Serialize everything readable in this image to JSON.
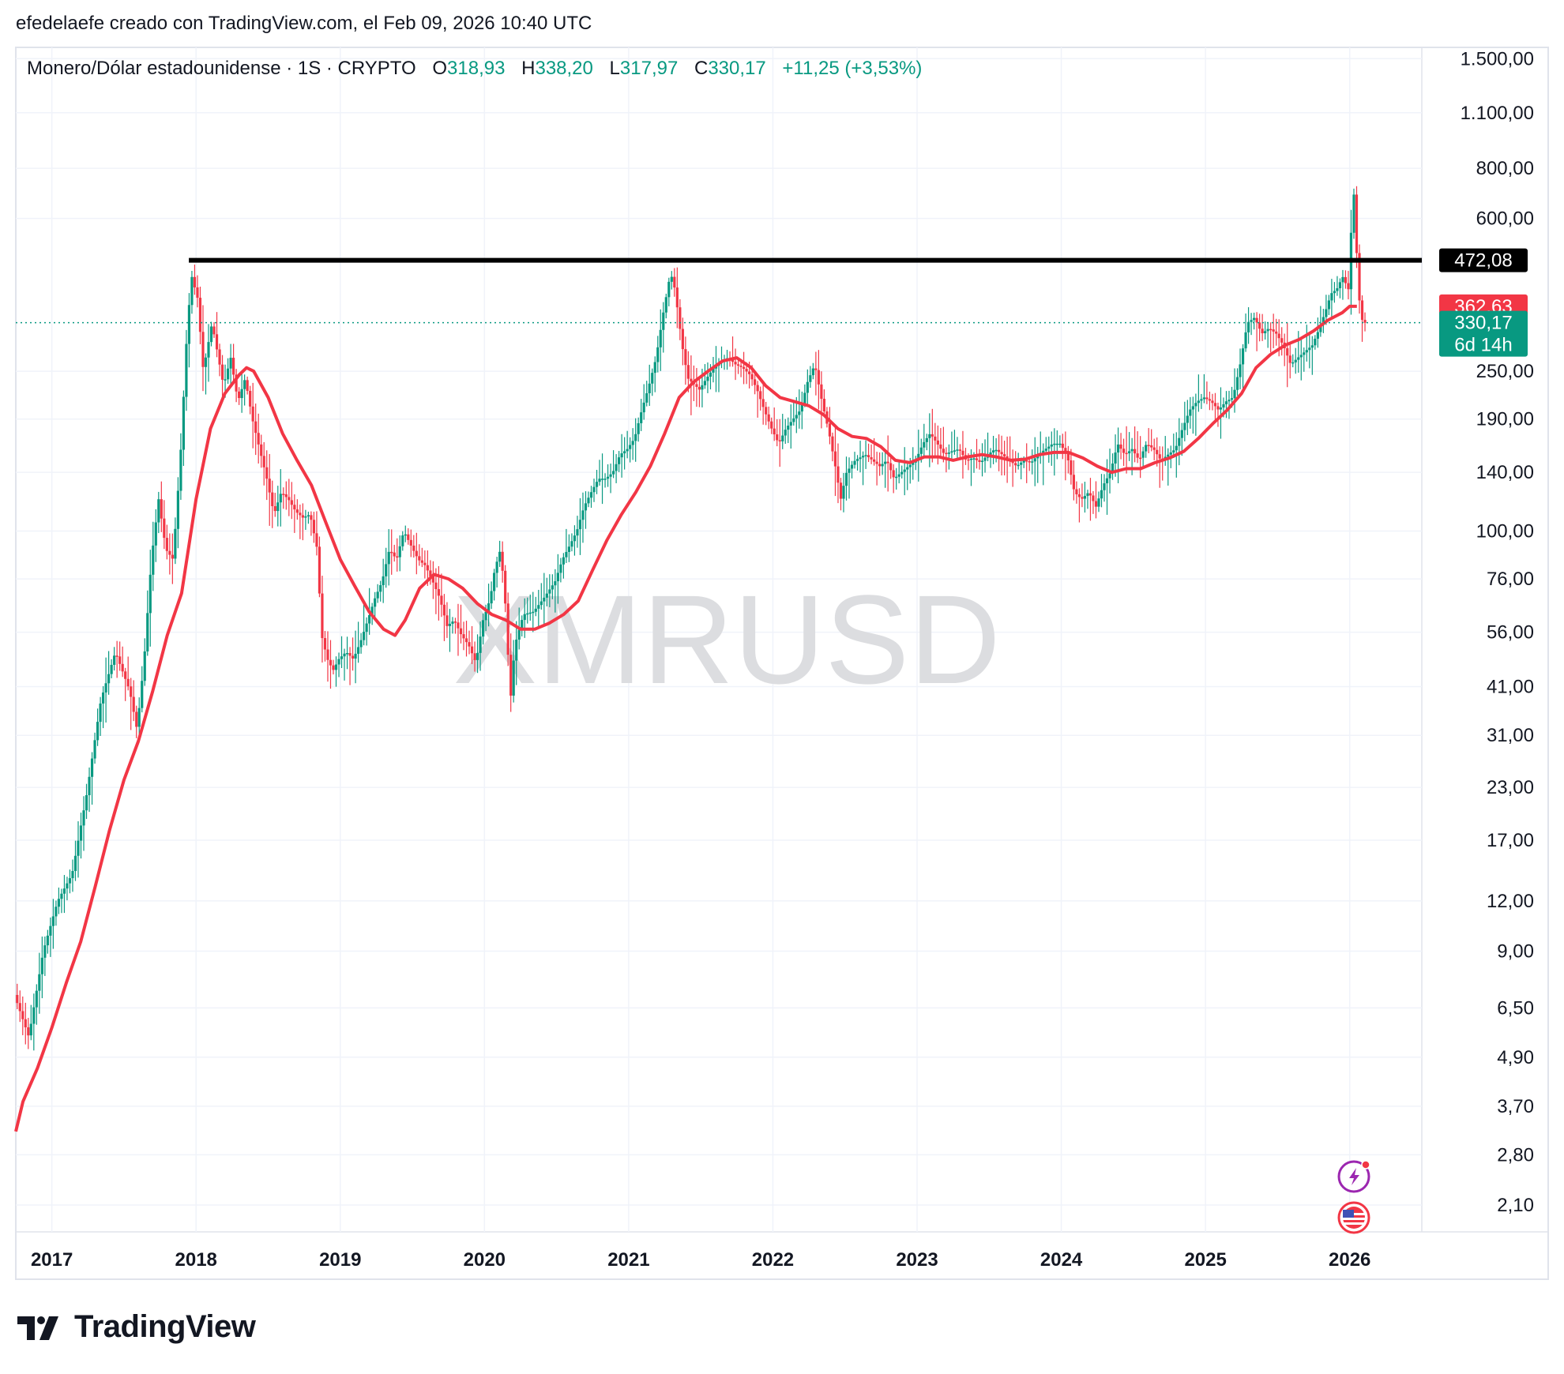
{
  "header": {
    "credit": "efedelaefe creado con TradingView.com, el Feb 09, 2026 10:40 UTC"
  },
  "legend": {
    "symbol_text": "Monero/Dólar estadounidense · 1S · CRYPTO",
    "o_label": "O",
    "o_value": "318,93",
    "h_label": "H",
    "h_value": "338,20",
    "l_label": "L",
    "l_value": "317,97",
    "c_label": "C",
    "c_value": "330,17",
    "change": "+11,25 (+3,53%)"
  },
  "watermark": "XMRUSD",
  "footer": {
    "brand": "TradingView"
  },
  "icons": [
    "lightning-icon",
    "us-flag-icon",
    "tradingview-logo-icon"
  ],
  "colors": {
    "up": "#089981",
    "down": "#f23645",
    "ma_line": "#f23645",
    "resistance_line": "#000000",
    "grid": "#f0f3fa",
    "text": "#131722",
    "watermark": "#dcdde0",
    "icon_purple": "#9c27b0"
  },
  "chart_data": {
    "type": "candlestick",
    "title": "Monero/Dólar estadounidense · 1S · CRYPTO",
    "scale": "log",
    "grid": true,
    "y_axis_position": "right",
    "x_tick_labels": [
      "2017",
      "2018",
      "2019",
      "2020",
      "2021",
      "2022",
      "2023",
      "2024",
      "2025",
      "2026"
    ],
    "y_tick_labels": [
      "1.500,00",
      "1.100,00",
      "800,00",
      "600,00",
      "250,00",
      "190,00",
      "140,00",
      "100,00",
      "76,00",
      "56,00",
      "41,00",
      "31,00",
      "23,00",
      "17,00",
      "12,00",
      "9,00",
      "6,50",
      "4,90",
      "3,70",
      "2,80",
      "2,10"
    ],
    "y_tick_values": [
      1500,
      1100,
      800,
      600,
      250,
      190,
      140,
      100,
      76,
      56,
      41,
      31,
      23,
      17,
      12,
      9,
      6.5,
      4.9,
      3.7,
      2.8,
      2.1
    ],
    "ylim": [
      1.8,
      1600
    ],
    "xlim": [
      2016.75,
      2026.5
    ],
    "last_bar": {
      "open": 318.93,
      "high": 338.2,
      "low": 317.97,
      "close": 330.17
    },
    "horizontal_line": {
      "value": 472.08,
      "label": "472,08",
      "x_start": 2017.95
    },
    "price_labels": [
      {
        "label": "472,08",
        "value": 472.08,
        "color": "#000000"
      },
      {
        "label": "362,63",
        "value": 362.63,
        "color": "#f23645"
      },
      {
        "label": "330,17",
        "sublabel": "6d 14h",
        "value": 330.17,
        "color": "#089981"
      }
    ],
    "current_price_line": 330.17,
    "series": [
      {
        "type": "price",
        "points": [
          [
            2016.75,
            7
          ],
          [
            2016.85,
            5.5
          ],
          [
            2016.95,
            9
          ],
          [
            2017.05,
            12
          ],
          [
            2017.15,
            14
          ],
          [
            2017.25,
            22
          ],
          [
            2017.35,
            38
          ],
          [
            2017.45,
            50
          ],
          [
            2017.55,
            40
          ],
          [
            2017.6,
            32
          ],
          [
            2017.65,
            48
          ],
          [
            2017.7,
            85
          ],
          [
            2017.75,
            120
          ],
          [
            2017.8,
            90
          ],
          [
            2017.85,
            85
          ],
          [
            2017.9,
            150
          ],
          [
            2017.95,
            330
          ],
          [
            2017.98,
            430
          ],
          [
            2018.02,
            380
          ],
          [
            2018.06,
            250
          ],
          [
            2018.12,
            330
          ],
          [
            2018.2,
            230
          ],
          [
            2018.25,
            270
          ],
          [
            2018.3,
            210
          ],
          [
            2018.35,
            240
          ],
          [
            2018.4,
            190
          ],
          [
            2018.45,
            160
          ],
          [
            2018.5,
            135
          ],
          [
            2018.55,
            110
          ],
          [
            2018.6,
            125
          ],
          [
            2018.65,
            120
          ],
          [
            2018.7,
            112
          ],
          [
            2018.75,
            108
          ],
          [
            2018.8,
            110
          ],
          [
            2018.85,
            90
          ],
          [
            2018.88,
            55
          ],
          [
            2018.92,
            48
          ],
          [
            2018.96,
            45
          ],
          [
            2019.0,
            48
          ],
          [
            2019.05,
            50
          ],
          [
            2019.1,
            48
          ],
          [
            2019.15,
            53
          ],
          [
            2019.2,
            60
          ],
          [
            2019.25,
            68
          ],
          [
            2019.3,
            75
          ],
          [
            2019.35,
            90
          ],
          [
            2019.4,
            85
          ],
          [
            2019.45,
            100
          ],
          [
            2019.5,
            92
          ],
          [
            2019.55,
            85
          ],
          [
            2019.6,
            82
          ],
          [
            2019.65,
            75
          ],
          [
            2019.7,
            68
          ],
          [
            2019.75,
            58
          ],
          [
            2019.8,
            60
          ],
          [
            2019.85,
            55
          ],
          [
            2019.9,
            52
          ],
          [
            2019.95,
            47
          ],
          [
            2020.0,
            60
          ],
          [
            2020.05,
            68
          ],
          [
            2020.08,
            80
          ],
          [
            2020.12,
            90
          ],
          [
            2020.15,
            70
          ],
          [
            2020.19,
            38
          ],
          [
            2020.22,
            52
          ],
          [
            2020.28,
            62
          ],
          [
            2020.35,
            63
          ],
          [
            2020.42,
            68
          ],
          [
            2020.5,
            75
          ],
          [
            2020.55,
            85
          ],
          [
            2020.6,
            92
          ],
          [
            2020.65,
            100
          ],
          [
            2020.7,
            115
          ],
          [
            2020.75,
            125
          ],
          [
            2020.8,
            135
          ],
          [
            2020.85,
            135
          ],
          [
            2020.9,
            140
          ],
          [
            2020.95,
            155
          ],
          [
            2021.0,
            160
          ],
          [
            2021.05,
            170
          ],
          [
            2021.1,
            200
          ],
          [
            2021.15,
            230
          ],
          [
            2021.2,
            270
          ],
          [
            2021.25,
            350
          ],
          [
            2021.3,
            440
          ],
          [
            2021.33,
            400
          ],
          [
            2021.38,
            290
          ],
          [
            2021.42,
            240
          ],
          [
            2021.5,
            225
          ],
          [
            2021.55,
            240
          ],
          [
            2021.6,
            255
          ],
          [
            2021.65,
            265
          ],
          [
            2021.7,
            270
          ],
          [
            2021.75,
            260
          ],
          [
            2021.8,
            255
          ],
          [
            2021.85,
            245
          ],
          [
            2021.9,
            225
          ],
          [
            2021.95,
            200
          ],
          [
            2022.0,
            180
          ],
          [
            2022.05,
            165
          ],
          [
            2022.1,
            180
          ],
          [
            2022.15,
            190
          ],
          [
            2022.2,
            200
          ],
          [
            2022.25,
            235
          ],
          [
            2022.3,
            260
          ],
          [
            2022.35,
            210
          ],
          [
            2022.4,
            175
          ],
          [
            2022.45,
            140
          ],
          [
            2022.48,
            120
          ],
          [
            2022.52,
            140
          ],
          [
            2022.58,
            150
          ],
          [
            2022.65,
            155
          ],
          [
            2022.7,
            150
          ],
          [
            2022.75,
            145
          ],
          [
            2022.8,
            150
          ],
          [
            2022.85,
            135
          ],
          [
            2022.9,
            140
          ],
          [
            2022.95,
            145
          ],
          [
            2023.0,
            150
          ],
          [
            2023.05,
            165
          ],
          [
            2023.1,
            175
          ],
          [
            2023.15,
            165
          ],
          [
            2023.2,
            155
          ],
          [
            2023.25,
            158
          ],
          [
            2023.3,
            160
          ],
          [
            2023.35,
            150
          ],
          [
            2023.4,
            152
          ],
          [
            2023.45,
            148
          ],
          [
            2023.5,
            155
          ],
          [
            2023.55,
            160
          ],
          [
            2023.6,
            155
          ],
          [
            2023.65,
            150
          ],
          [
            2023.7,
            145
          ],
          [
            2023.75,
            150
          ],
          [
            2023.8,
            148
          ],
          [
            2023.85,
            155
          ],
          [
            2023.9,
            160
          ],
          [
            2023.95,
            165
          ],
          [
            2024.0,
            165
          ],
          [
            2024.05,
            155
          ],
          [
            2024.1,
            125
          ],
          [
            2024.15,
            120
          ],
          [
            2024.2,
            125
          ],
          [
            2024.25,
            115
          ],
          [
            2024.3,
            130
          ],
          [
            2024.35,
            140
          ],
          [
            2024.4,
            165
          ],
          [
            2024.45,
            155
          ],
          [
            2024.5,
            160
          ],
          [
            2024.55,
            150
          ],
          [
            2024.6,
            165
          ],
          [
            2024.65,
            160
          ],
          [
            2024.7,
            150
          ],
          [
            2024.75,
            155
          ],
          [
            2024.8,
            160
          ],
          [
            2024.85,
            180
          ],
          [
            2024.9,
            200
          ],
          [
            2024.95,
            210
          ],
          [
            2025.0,
            215
          ],
          [
            2025.05,
            210
          ],
          [
            2025.1,
            200
          ],
          [
            2025.15,
            210
          ],
          [
            2025.2,
            215
          ],
          [
            2025.25,
            260
          ],
          [
            2025.3,
            330
          ],
          [
            2025.35,
            340
          ],
          [
            2025.4,
            310
          ],
          [
            2025.45,
            320
          ],
          [
            2025.5,
            310
          ],
          [
            2025.55,
            290
          ],
          [
            2025.6,
            260
          ],
          [
            2025.65,
            270
          ],
          [
            2025.7,
            280
          ],
          [
            2025.75,
            290
          ],
          [
            2025.8,
            320
          ],
          [
            2025.85,
            360
          ],
          [
            2025.88,
            390
          ],
          [
            2025.92,
            400
          ],
          [
            2025.96,
            430
          ],
          [
            2026.0,
            400
          ],
          [
            2026.02,
            560
          ],
          [
            2026.04,
            700
          ],
          [
            2026.06,
            470
          ],
          [
            2026.08,
            360
          ],
          [
            2026.1,
            330
          ]
        ]
      },
      {
        "type": "moving_average",
        "color": "#f23645",
        "points": [
          [
            2016.75,
            3.2
          ],
          [
            2016.8,
            3.8
          ],
          [
            2016.9,
            4.6
          ],
          [
            2017.0,
            5.8
          ],
          [
            2017.1,
            7.5
          ],
          [
            2017.2,
            9.5
          ],
          [
            2017.3,
            13
          ],
          [
            2017.4,
            18
          ],
          [
            2017.5,
            24
          ],
          [
            2017.6,
            30
          ],
          [
            2017.7,
            40
          ],
          [
            2017.8,
            55
          ],
          [
            2017.9,
            70
          ],
          [
            2018.0,
            120
          ],
          [
            2018.1,
            180
          ],
          [
            2018.2,
            220
          ],
          [
            2018.3,
            245
          ],
          [
            2018.35,
            255
          ],
          [
            2018.4,
            250
          ],
          [
            2018.5,
            215
          ],
          [
            2018.6,
            175
          ],
          [
            2018.7,
            150
          ],
          [
            2018.8,
            130
          ],
          [
            2018.9,
            105
          ],
          [
            2019.0,
            85
          ],
          [
            2019.1,
            73
          ],
          [
            2019.2,
            63
          ],
          [
            2019.3,
            57
          ],
          [
            2019.38,
            55
          ],
          [
            2019.45,
            60
          ],
          [
            2019.55,
            72
          ],
          [
            2019.65,
            78
          ],
          [
            2019.75,
            76
          ],
          [
            2019.85,
            72
          ],
          [
            2019.95,
            66
          ],
          [
            2020.05,
            62
          ],
          [
            2020.15,
            60
          ],
          [
            2020.25,
            57
          ],
          [
            2020.35,
            57
          ],
          [
            2020.45,
            59
          ],
          [
            2020.55,
            62
          ],
          [
            2020.65,
            67
          ],
          [
            2020.75,
            80
          ],
          [
            2020.85,
            95
          ],
          [
            2020.95,
            110
          ],
          [
            2021.05,
            125
          ],
          [
            2021.15,
            145
          ],
          [
            2021.25,
            175
          ],
          [
            2021.35,
            215
          ],
          [
            2021.45,
            235
          ],
          [
            2021.55,
            250
          ],
          [
            2021.65,
            265
          ],
          [
            2021.75,
            270
          ],
          [
            2021.85,
            255
          ],
          [
            2021.95,
            230
          ],
          [
            2022.05,
            215
          ],
          [
            2022.15,
            210
          ],
          [
            2022.25,
            205
          ],
          [
            2022.35,
            195
          ],
          [
            2022.45,
            180
          ],
          [
            2022.55,
            172
          ],
          [
            2022.65,
            170
          ],
          [
            2022.75,
            162
          ],
          [
            2022.85,
            150
          ],
          [
            2022.95,
            148
          ],
          [
            2023.05,
            153
          ],
          [
            2023.15,
            153
          ],
          [
            2023.25,
            150
          ],
          [
            2023.35,
            153
          ],
          [
            2023.45,
            155
          ],
          [
            2023.55,
            153
          ],
          [
            2023.65,
            150
          ],
          [
            2023.75,
            151
          ],
          [
            2023.85,
            155
          ],
          [
            2023.95,
            157
          ],
          [
            2024.05,
            157
          ],
          [
            2024.15,
            152
          ],
          [
            2024.25,
            145
          ],
          [
            2024.35,
            140
          ],
          [
            2024.45,
            143
          ],
          [
            2024.55,
            143
          ],
          [
            2024.65,
            148
          ],
          [
            2024.75,
            152
          ],
          [
            2024.85,
            158
          ],
          [
            2024.95,
            170
          ],
          [
            2025.05,
            185
          ],
          [
            2025.15,
            200
          ],
          [
            2025.25,
            220
          ],
          [
            2025.35,
            255
          ],
          [
            2025.45,
            275
          ],
          [
            2025.55,
            290
          ],
          [
            2025.65,
            300
          ],
          [
            2025.75,
            315
          ],
          [
            2025.85,
            335
          ],
          [
            2025.95,
            350
          ],
          [
            2026.0,
            362.63
          ],
          [
            2026.05,
            362.63
          ]
        ]
      }
    ]
  }
}
